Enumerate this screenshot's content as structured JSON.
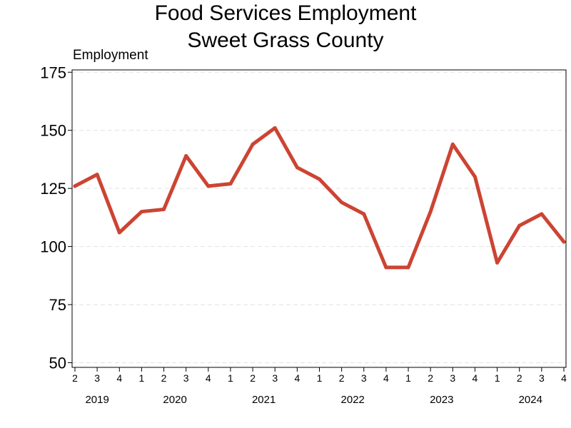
{
  "chart_data": {
    "type": "line",
    "title": "Food Services Employment",
    "subtitle": "Sweet Grass County",
    "ylabel": "Employment",
    "xlabel": "",
    "ylim": [
      48,
      176
    ],
    "yticks": [
      50,
      75,
      100,
      125,
      150,
      175
    ],
    "grid": true,
    "color": "#cc4433",
    "x": [
      "2019 Q2",
      "2019 Q3",
      "2019 Q4",
      "2020 Q1",
      "2020 Q2",
      "2020 Q3",
      "2020 Q4",
      "2021 Q1",
      "2021 Q2",
      "2021 Q3",
      "2021 Q4",
      "2022 Q1",
      "2022 Q2",
      "2022 Q3",
      "2022 Q4",
      "2023 Q1",
      "2023 Q2",
      "2023 Q3",
      "2023 Q4",
      "2024 Q1",
      "2024 Q2",
      "2024 Q3",
      "2024 Q4"
    ],
    "quarter_labels": [
      "2",
      "3",
      "4",
      "1",
      "2",
      "3",
      "4",
      "1",
      "2",
      "3",
      "4",
      "1",
      "2",
      "3",
      "4",
      "1",
      "2",
      "3",
      "4",
      "1",
      "2",
      "3",
      "4"
    ],
    "years": [
      {
        "label": "2019",
        "first_index": 0,
        "last_index": 2
      },
      {
        "label": "2020",
        "first_index": 3,
        "last_index": 6
      },
      {
        "label": "2021",
        "first_index": 7,
        "last_index": 10
      },
      {
        "label": "2022",
        "first_index": 11,
        "last_index": 14
      },
      {
        "label": "2023",
        "first_index": 15,
        "last_index": 18
      },
      {
        "label": "2024",
        "first_index": 19,
        "last_index": 22
      }
    ],
    "values": [
      126,
      131,
      106,
      115,
      116,
      139,
      126,
      127,
      144,
      151,
      134,
      129,
      119,
      114,
      91,
      91,
      115,
      144,
      130,
      93,
      109,
      114,
      102
    ]
  }
}
